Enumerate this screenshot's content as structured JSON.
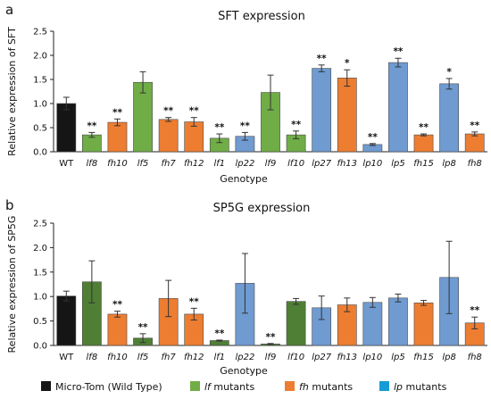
{
  "colors": {
    "wild_type": "#151515",
    "lf": "#70ad47",
    "fh": "#ed7d31",
    "lp": "#6f9bd1",
    "lf_dark": "#4f7f35",
    "lp_legend": "#169bd5",
    "axis": "#222222",
    "edge": "#4a4a4a"
  },
  "chart_data": [
    {
      "panel_letter": "a",
      "type": "bar",
      "title": "SFT expression",
      "xlabel": "Genotype",
      "ylabel": "Relative expression of SFT",
      "ylim": [
        0,
        2.5
      ],
      "yticks": [
        "0.0",
        "0.5",
        "1.0",
        "1.5",
        "2.0",
        "2.5"
      ],
      "grid": false,
      "categories": [
        "WT",
        "lf8",
        "fh10",
        "lf5",
        "fh7",
        "fh12",
        "lf1",
        "lp22",
        "lf9",
        "lf10",
        "lp27",
        "fh13",
        "lp10",
        "lp5",
        "fh15",
        "lp8",
        "fh8"
      ],
      "values": [
        1.0,
        0.35,
        0.61,
        1.44,
        0.67,
        0.62,
        0.28,
        0.32,
        1.23,
        0.35,
        1.73,
        1.53,
        0.15,
        1.85,
        0.35,
        1.41,
        0.37
      ],
      "errors": [
        0.13,
        0.05,
        0.07,
        0.22,
        0.04,
        0.09,
        0.09,
        0.08,
        0.36,
        0.08,
        0.07,
        0.17,
        0.02,
        0.09,
        0.02,
        0.11,
        0.04
      ],
      "groups": [
        "wt",
        "lf",
        "fh",
        "lf",
        "fh",
        "fh",
        "lf",
        "lp",
        "lf",
        "lf",
        "lp",
        "fh",
        "lp",
        "lp",
        "fh",
        "lp",
        "fh"
      ],
      "significance": [
        "",
        "**",
        "**",
        "",
        "**",
        "**",
        "**",
        "**",
        "",
        "**",
        "**",
        "*",
        "**",
        "**",
        "**",
        "*",
        "**"
      ]
    },
    {
      "panel_letter": "b",
      "type": "bar",
      "title": "SP5G expression",
      "xlabel": "Genotype",
      "ylabel": "Relative expression of SP5G",
      "ylim": [
        0,
        2.5
      ],
      "yticks": [
        "0.0",
        "0.5",
        "1.0",
        "1.5",
        "2.0",
        "2.5"
      ],
      "grid": false,
      "categories": [
        "WT",
        "lf8",
        "fh10",
        "lf5",
        "fh7",
        "fh12",
        "lf1",
        "lp22",
        "lf9",
        "lf10",
        "lp27",
        "fh13",
        "lp10",
        "lp5",
        "fh15",
        "lp8",
        "fh8"
      ],
      "values": [
        1.01,
        1.3,
        0.64,
        0.15,
        0.96,
        0.64,
        0.1,
        1.27,
        0.03,
        0.9,
        0.77,
        0.83,
        0.88,
        0.97,
        0.87,
        1.39,
        0.46
      ],
      "errors": [
        0.1,
        0.43,
        0.06,
        0.09,
        0.37,
        0.12,
        0.01,
        0.61,
        0.01,
        0.06,
        0.24,
        0.14,
        0.1,
        0.08,
        0.05,
        0.74,
        0.12
      ],
      "groups": [
        "wt",
        "lf",
        "fh",
        "lf",
        "fh",
        "fh",
        "lf",
        "lp",
        "lf",
        "lf",
        "lp",
        "fh",
        "lp",
        "lp",
        "fh",
        "lp",
        "fh"
      ],
      "significance": [
        "",
        "",
        "**",
        "**",
        "",
        "**",
        "**",
        "",
        "**",
        "",
        "",
        "",
        "",
        "",
        "",
        "",
        "**"
      ]
    }
  ],
  "legend": {
    "placement": "bottom",
    "items": [
      {
        "group": "wt",
        "label": "Micro-Tom (Wild Type)",
        "italic": "",
        "rest": ""
      },
      {
        "group": "lf",
        "label": "",
        "italic": "lf",
        "rest": " mutants"
      },
      {
        "group": "fh",
        "label": "",
        "italic": "fh",
        "rest": " mutants"
      },
      {
        "group": "lp",
        "label": "",
        "italic": "lp",
        "rest": " mutants"
      }
    ]
  }
}
